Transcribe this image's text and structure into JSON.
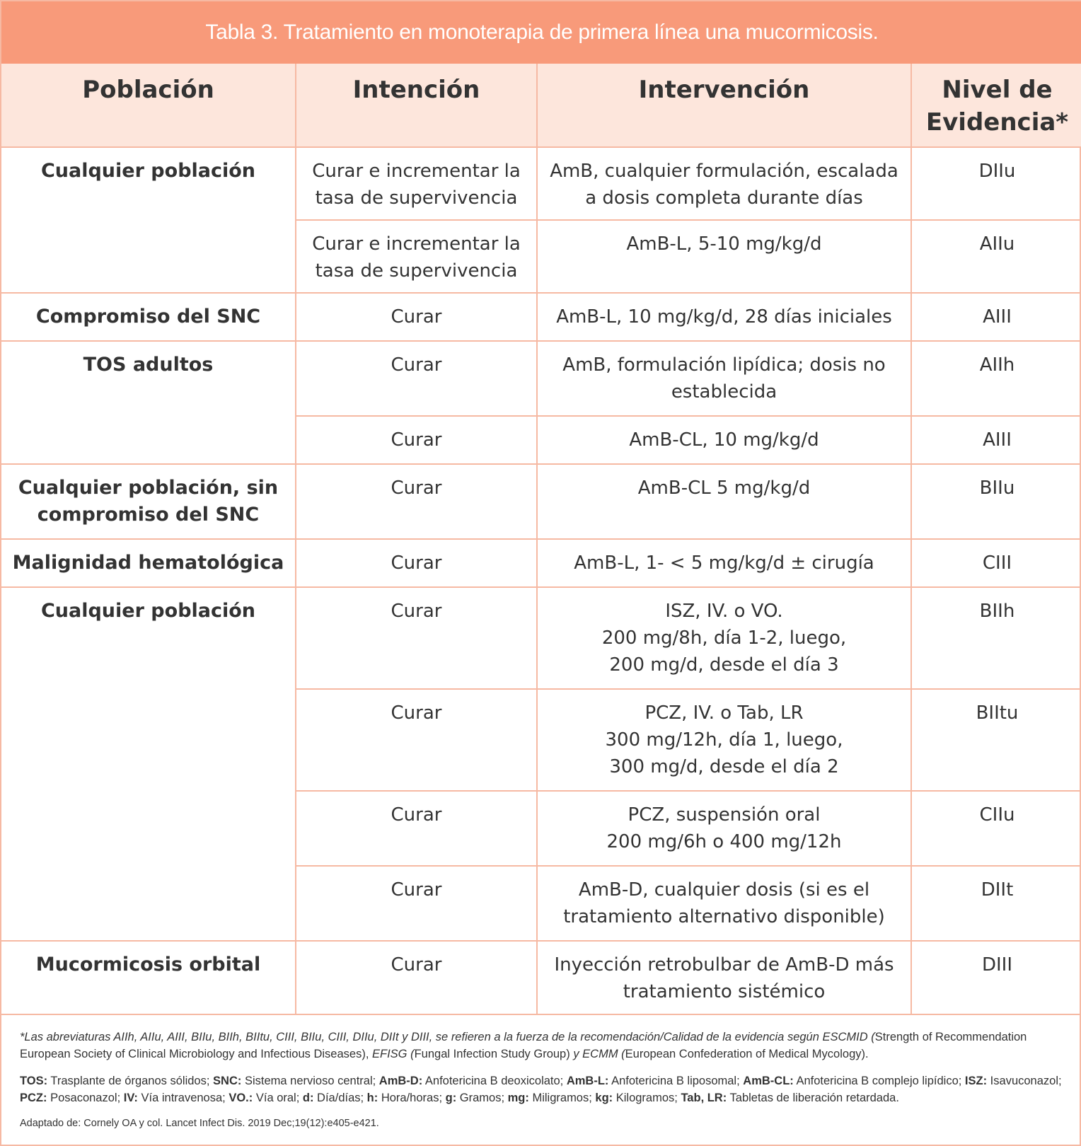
{
  "title": "Tabla 3. Tratamiento en monoterapia de primera línea una mucormicosis.",
  "headers": [
    "Población",
    "Intención",
    "Intervención",
    "Nivel de Evidencia*"
  ],
  "rows": {
    "r0": {
      "population": "Cualquier población",
      "intention": [
        "Curar e incrementar la",
        "tasa de supervivencia"
      ],
      "intervention": [
        "AmB, cualquier formulación, escalada",
        "a dosis completa durante días"
      ],
      "evidence": "DIIu"
    },
    "r1": {
      "intention": [
        "Curar e incrementar la",
        "tasa de supervivencia"
      ],
      "intervention": [
        "AmB-L, 5-10 mg/kg/d"
      ],
      "evidence": "AIIu"
    },
    "r2": {
      "population": "Compromiso del SNC",
      "intention": [
        "Curar"
      ],
      "intervention": [
        "AmB-L, 10 mg/kg/d, 28 días iniciales"
      ],
      "evidence": "AIII"
    },
    "r3": {
      "population": "TOS adultos",
      "intention": [
        "Curar"
      ],
      "intervention": [
        "AmB, formulación lipídica; dosis no",
        "establecida"
      ],
      "evidence": "AIIh"
    },
    "r4": {
      "intention": [
        "Curar"
      ],
      "intervention": [
        "AmB-CL, 10 mg/kg/d"
      ],
      "evidence": "AIII"
    },
    "r5": {
      "population": [
        "Cualquier población, sin",
        "compromiso del SNC"
      ],
      "intention": [
        "Curar"
      ],
      "intervention": [
        "AmB-CL 5 mg/kg/d"
      ],
      "evidence": "BIIu"
    },
    "r6": {
      "population": "Malignidad hematológica",
      "intention": [
        "Curar"
      ],
      "intervention": [
        "AmB-L, 1- < 5 mg/kg/d ± cirugía"
      ],
      "evidence": "CIII"
    },
    "r7": {
      "population": "Cualquier población",
      "intention": [
        "Curar"
      ],
      "intervention": [
        "ISZ, IV. o VO.",
        "200 mg/8h, día 1-2, luego,",
        "200 mg/d, desde el día 3"
      ],
      "evidence": "BIIh"
    },
    "r8": {
      "intention": [
        "Curar"
      ],
      "intervention": [
        "PCZ, IV. o Tab, LR",
        "300 mg/12h, día 1, luego,",
        "300 mg/d, desde el día 2"
      ],
      "evidence": "BIItu"
    },
    "r9": {
      "intention": [
        "Curar"
      ],
      "intervention": [
        "PCZ, suspensión oral",
        "200 mg/6h o 400 mg/12h"
      ],
      "evidence": "CIIu"
    },
    "r10": {
      "intention": [
        "Curar"
      ],
      "intervention": [
        "AmB-D, cualquier dosis (si es el",
        "tratamiento alternativo disponible)"
      ],
      "evidence": "DIIt"
    },
    "r11": {
      "population": "Mucormicosis orbital",
      "intention": [
        "Curar"
      ],
      "intervention": [
        "Inyección retrobulbar de AmB-D más",
        "tratamiento sistémico"
      ],
      "evidence": "DIII"
    }
  },
  "footnote": {
    "italic_a": "*Las abreviaturas AIIh, AIIu, AIII, BIIu, BIIh, BIItu, CIII, BIIu, CIII, DIIu, DIIt y DIII, se refieren a la fuerza de la recomendación/Calidad de la evidencia según ESCMID (",
    "plain_a": "Strength of Recommendation European Society of Clinical Microbiology and Infectious Diseases), ",
    "italic_b": "EFISG (",
    "plain_b": "Fungal Infection Study Group) ",
    "italic_c": "y ECMM (",
    "plain_c": "European Confederation of Medical Mycology)."
  },
  "abbreviations": [
    {
      "term": "TOS:",
      "def": " Trasplante de órganos sólidos; "
    },
    {
      "term": "SNC:",
      "def": " Sistema nervioso central; "
    },
    {
      "term": "AmB-D:",
      "def": " Anfotericina B deoxicolato; "
    },
    {
      "term": "AmB-L:",
      "def": " Anfotericina B liposomal; "
    },
    {
      "term": "AmB-CL:",
      "def": " Anfotericina B complejo lipídico; "
    },
    {
      "term": "ISZ:",
      "def": " Isavuconazol; "
    },
    {
      "term": "PCZ:",
      "def": " Posaconazol; "
    },
    {
      "term": "IV:",
      "def": " Vía intravenosa; "
    },
    {
      "term": "VO.:",
      "def": " Vía oral; "
    },
    {
      "term": "d:",
      "def": " Día/días; "
    },
    {
      "term": "h:",
      "def": " Hora/horas; "
    },
    {
      "term": "g:",
      "def": " Gramos; "
    },
    {
      "term": "mg:",
      "def": " Miligramos; "
    },
    {
      "term": "kg:",
      "def": " Kilogramos; "
    },
    {
      "term": "Tab, LR:",
      "def": " Tabletas de liberación retardada."
    }
  ],
  "source": "Adaptado de: Cornely OA y col. Lancet Infect Dis. 2019 Dec;19(12):e405-e421.",
  "colors": {
    "title_bar": "#f89a7a",
    "header_bg": "#fde6dc",
    "border": "#f6b9a3",
    "text": "#333333"
  }
}
